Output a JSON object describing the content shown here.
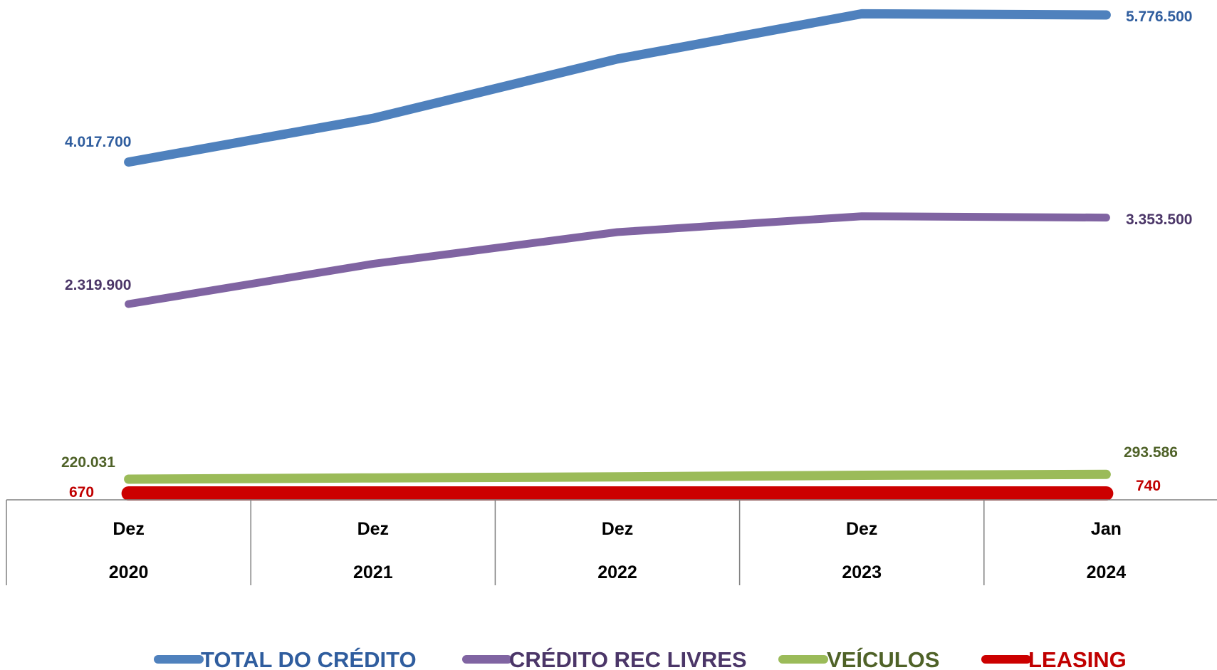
{
  "chart_data": {
    "type": "line",
    "categories": [
      {
        "month": "Dez",
        "year": "2020"
      },
      {
        "month": "Dez",
        "year": "2021"
      },
      {
        "month": "Dez",
        "year": "2022"
      },
      {
        "month": "Dez",
        "year": "2023"
      },
      {
        "month": "Jan",
        "year": "2024"
      }
    ],
    "series": [
      {
        "name": "TOTAL DO CRÉDITO",
        "color": "#4F81BD",
        "label_color": "#2F5D9E",
        "values": [
          4017700,
          4540000,
          5250000,
          5790000,
          5776500
        ],
        "first_label": "4.017.700",
        "last_label": "5.776.500"
      },
      {
        "name": "CRÉDITO REC LIVRES",
        "color": "#8064A2",
        "label_color": "#4B3668",
        "values": [
          2319900,
          2800000,
          3180000,
          3370000,
          3353500
        ],
        "first_label": "2.319.900",
        "last_label": "3.353.500"
      },
      {
        "name": "VEÍCULOS",
        "color": "#9BBB59",
        "label_color": "#4F6228",
        "values": [
          220031,
          240000,
          255000,
          280000,
          293586
        ],
        "first_label": "220.031",
        "last_label": "293.586"
      },
      {
        "name": "LEASING",
        "color": "#CC0000",
        "label_color": "#C00000",
        "values": [
          670,
          690,
          710,
          730,
          740
        ],
        "first_label": "670",
        "last_label": "740"
      }
    ],
    "title": "",
    "xlabel": "",
    "ylabel": "",
    "grid": false,
    "legend_position": "bottom"
  }
}
